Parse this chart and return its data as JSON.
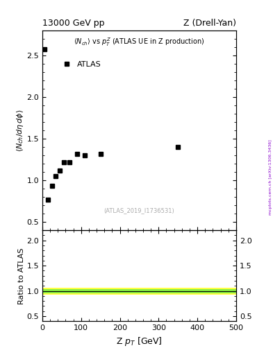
{
  "title_left": "13000 GeV pp",
  "title_right": "Z (Drell-Yan)",
  "plot_title": "<N_{ch}> vs p_{T}^{Z} (ATLAS UE in Z production)",
  "ylabel_main": "<N_{ch}/dη dφ>",
  "ylabel_ratio": "Ratio to ATLAS",
  "xlabel": "Z p_{T} [GeV]",
  "watermark": "(ATLAS_2019_I1736531)",
  "side_label": "mcplots.cern.ch [arXiv:1306.3436]",
  "legend_label": "ATLAS",
  "data_x": [
    5.0,
    15.0,
    25.0,
    35.0,
    45.0,
    55.0,
    70.0,
    90.0,
    110.0,
    150.0,
    350.0
  ],
  "data_y": [
    2.57,
    0.77,
    0.93,
    1.05,
    1.12,
    1.22,
    1.22,
    1.32,
    1.3,
    1.32,
    1.4
  ],
  "xlim": [
    0,
    500
  ],
  "ylim_main": [
    0.4,
    2.8
  ],
  "ylim_ratio": [
    0.4,
    2.2
  ],
  "yticks_main": [
    0.5,
    1.0,
    1.5,
    2.0,
    2.5
  ],
  "yticks_ratio": [
    0.5,
    1.0,
    1.5,
    2.0
  ],
  "xticks": [
    0,
    100,
    200,
    300,
    400,
    500
  ],
  "ratio_band_yellow_lo": 0.93,
  "ratio_band_yellow_hi": 1.07,
  "ratio_band_green_lo": 0.96,
  "ratio_band_green_hi": 1.04,
  "ratio_line_y": 1.0,
  "marker_color": "black",
  "marker_style": "s",
  "marker_size": 4,
  "band_yellow_color": "#ffff44",
  "band_green_color": "#88ee44",
  "fig_bg": "white"
}
